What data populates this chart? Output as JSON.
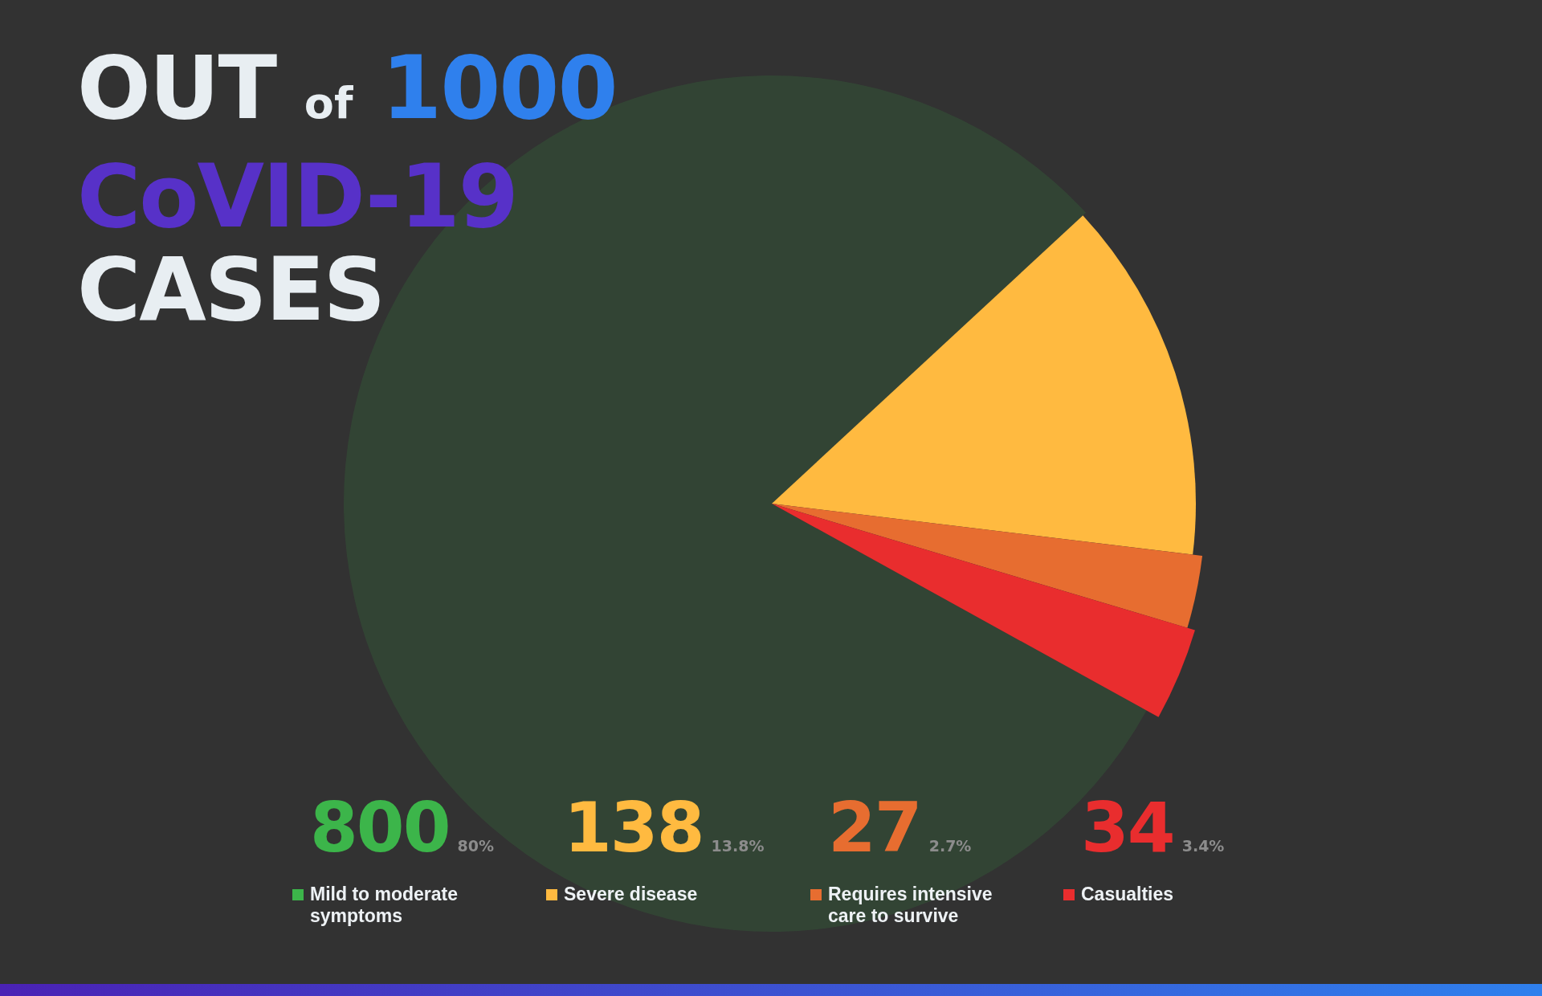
{
  "chart_data": {
    "type": "pie",
    "title": "OUT of 1000 CoVID-19 CASES",
    "categories": [
      "Mild to moderate symptoms",
      "Severe disease",
      "Requires intensive care to survive",
      "Casualties"
    ],
    "values": [
      800,
      138,
      27,
      34
    ],
    "colors": [
      "#3cb54a",
      "#ffba40",
      "#e76d30",
      "#e92d2e"
    ],
    "data_labels": true,
    "legend": "bottom",
    "annotations": [
      "80%",
      "13.8%",
      "2.7%",
      "3.4%"
    ]
  }
}
